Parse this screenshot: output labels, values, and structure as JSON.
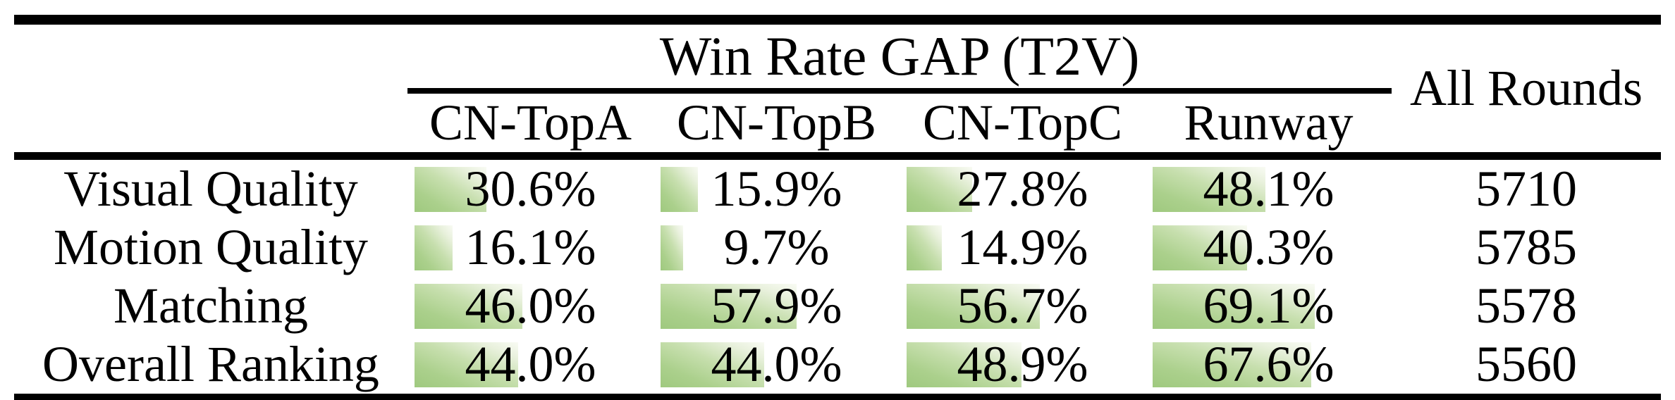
{
  "table": {
    "group_header": "Win Rate GAP (T2V)",
    "all_rounds_header": "All Rounds",
    "columns": [
      "CN-TopA",
      "CN-TopB",
      "CN-TopC",
      "Runway"
    ],
    "rows": [
      {
        "label": "Visual Quality",
        "values": [
          30.6,
          15.9,
          27.8,
          48.1
        ],
        "display": [
          "30.6%",
          "15.9%",
          "27.8%",
          "48.1%"
        ],
        "all_rounds": "5710"
      },
      {
        "label": "Motion Quality",
        "values": [
          16.1,
          9.7,
          14.9,
          40.3
        ],
        "display": [
          "16.1%",
          "9.7%",
          "14.9%",
          "40.3%"
        ],
        "all_rounds": "5785"
      },
      {
        "label": "Matching",
        "values": [
          46.0,
          57.9,
          56.7,
          69.1
        ],
        "display": [
          "46.0%",
          "57.9%",
          "56.7%",
          "69.1%"
        ],
        "all_rounds": "5578"
      },
      {
        "label": "Overall Ranking",
        "values": [
          44.0,
          44.0,
          48.9,
          67.6
        ],
        "display": [
          "44.0%",
          "44.0%",
          "48.9%",
          "67.6%"
        ],
        "all_rounds": "5560"
      }
    ],
    "bar_color_start": "#9fc97f",
    "bar_color_end": "#f9fbf4",
    "text_color": "#000000",
    "background_color": "#ffffff"
  },
  "chart_data": {
    "type": "table",
    "title": "Win Rate GAP (T2V)",
    "categories": [
      "Visual Quality",
      "Motion Quality",
      "Matching",
      "Overall Ranking"
    ],
    "series": [
      {
        "name": "CN-TopA",
        "values": [
          30.6,
          16.1,
          46.0,
          44.0
        ]
      },
      {
        "name": "CN-TopB",
        "values": [
          15.9,
          9.7,
          57.9,
          44.0
        ]
      },
      {
        "name": "CN-TopC",
        "values": [
          27.8,
          14.9,
          56.7,
          48.9
        ]
      },
      {
        "name": "Runway",
        "values": [
          48.1,
          40.3,
          69.1,
          67.6
        ]
      }
    ],
    "extra_column": {
      "name": "All Rounds",
      "values": [
        5710,
        5785,
        5578,
        5560
      ]
    },
    "value_unit": "%",
    "bar_scale_percent_max": 100
  }
}
